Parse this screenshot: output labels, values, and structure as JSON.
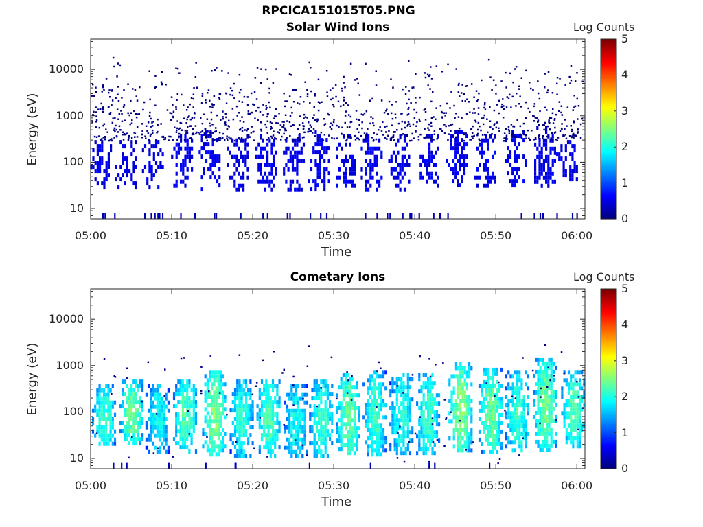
{
  "figure_title": "RPCICA151015T05.PNG",
  "colors": {
    "axes": "#262626",
    "background": "#ffffff",
    "colormap": "jet"
  },
  "chart_data": [
    {
      "type": "heatmap",
      "title": "Solar Wind Ions",
      "xlabel": "Time",
      "ylabel": "Energy (eV)",
      "y_scale": "log",
      "ylim": [
        6,
        45000
      ],
      "xlim": [
        "05:00",
        "06:01"
      ],
      "x_ticks": [
        "05:00",
        "05:10",
        "05:20",
        "05:30",
        "05:40",
        "05:50",
        "06:00"
      ],
      "y_ticks": [
        "10",
        "100",
        "1000",
        "10000"
      ],
      "colorbar": {
        "label": "Log Counts",
        "range": [
          0,
          5
        ],
        "ticks": [
          "0",
          "1",
          "2",
          "3",
          "4",
          "5"
        ]
      },
      "bursts": [
        {
          "t": 1.2,
          "lo": 30,
          "hi": 300,
          "level": 0.6
        },
        {
          "t": 4.3,
          "lo": 30,
          "hi": 300,
          "level": 0.7
        },
        {
          "t": 7.6,
          "lo": 30,
          "hi": 300,
          "level": 0.6
        },
        {
          "t": 11.2,
          "lo": 30,
          "hi": 400,
          "level": 0.9
        },
        {
          "t": 14.6,
          "lo": 25,
          "hi": 500,
          "level": 1.0
        },
        {
          "t": 18.1,
          "lo": 25,
          "hi": 400,
          "level": 0.8
        },
        {
          "t": 21.6,
          "lo": 25,
          "hi": 400,
          "level": 0.9
        },
        {
          "t": 25.0,
          "lo": 25,
          "hi": 400,
          "level": 0.7
        },
        {
          "t": 28.1,
          "lo": 25,
          "hi": 500,
          "level": 1.0
        },
        {
          "t": 31.3,
          "lo": 30,
          "hi": 400,
          "level": 1.1
        },
        {
          "t": 34.6,
          "lo": 25,
          "hi": 400,
          "level": 0.8
        },
        {
          "t": 38.0,
          "lo": 25,
          "hi": 400,
          "level": 0.7
        },
        {
          "t": 41.6,
          "lo": 30,
          "hi": 400,
          "level": 0.8
        },
        {
          "t": 45.1,
          "lo": 30,
          "hi": 500,
          "level": 1.0
        },
        {
          "t": 48.6,
          "lo": 30,
          "hi": 400,
          "level": 0.8
        },
        {
          "t": 52.4,
          "lo": 30,
          "hi": 500,
          "level": 0.8
        },
        {
          "t": 56.0,
          "lo": 30,
          "hi": 600,
          "level": 0.9
        },
        {
          "t": 58.7,
          "lo": 40,
          "hi": 300,
          "level": 0.7
        }
      ]
    },
    {
      "type": "heatmap",
      "title": "Cometary Ions",
      "xlabel": "Time",
      "ylabel": "Energy (eV)",
      "y_scale": "log",
      "ylim": [
        6,
        45000
      ],
      "xlim": [
        "05:00",
        "06:01"
      ],
      "x_ticks": [
        "05:00",
        "05:10",
        "05:20",
        "05:30",
        "05:40",
        "05:50",
        "06:00"
      ],
      "y_ticks": [
        "10",
        "100",
        "1000",
        "10000"
      ],
      "colorbar": {
        "label": "Log Counts",
        "range": [
          0,
          5
        ],
        "ticks": [
          "0",
          "1",
          "2",
          "3",
          "4",
          "5"
        ]
      },
      "bursts": [
        {
          "t": 1.6,
          "lo": 20,
          "hi": 400,
          "level": 1.8
        },
        {
          "t": 5.0,
          "lo": 20,
          "hi": 500,
          "level": 2.0
        },
        {
          "t": 8.2,
          "lo": 15,
          "hi": 400,
          "level": 1.6
        },
        {
          "t": 11.6,
          "lo": 15,
          "hi": 500,
          "level": 1.9
        },
        {
          "t": 15.2,
          "lo": 12,
          "hi": 800,
          "level": 2.1
        },
        {
          "t": 18.6,
          "lo": 12,
          "hi": 500,
          "level": 1.7
        },
        {
          "t": 21.9,
          "lo": 12,
          "hi": 500,
          "level": 1.9
        },
        {
          "t": 25.3,
          "lo": 12,
          "hi": 400,
          "level": 1.6
        },
        {
          "t": 28.4,
          "lo": 12,
          "hi": 500,
          "level": 1.8
        },
        {
          "t": 31.7,
          "lo": 12,
          "hi": 700,
          "level": 2.0
        },
        {
          "t": 35.0,
          "lo": 12,
          "hi": 800,
          "level": 1.8
        },
        {
          "t": 38.3,
          "lo": 12,
          "hi": 700,
          "level": 1.7
        },
        {
          "t": 41.6,
          "lo": 12,
          "hi": 700,
          "level": 1.8
        },
        {
          "t": 45.6,
          "lo": 15,
          "hi": 1200,
          "level": 2.1
        },
        {
          "t": 49.3,
          "lo": 15,
          "hi": 900,
          "level": 2.0
        },
        {
          "t": 52.6,
          "lo": 15,
          "hi": 800,
          "level": 1.8
        },
        {
          "t": 56.0,
          "lo": 15,
          "hi": 1500,
          "level": 2.0
        },
        {
          "t": 59.5,
          "lo": 20,
          "hi": 800,
          "level": 1.9
        }
      ]
    }
  ]
}
